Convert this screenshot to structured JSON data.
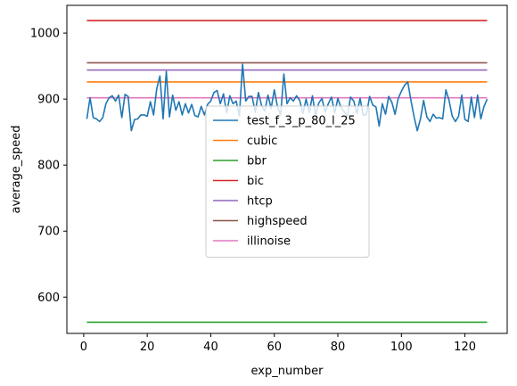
{
  "chart_data": {
    "type": "line",
    "xlabel": "exp_number",
    "ylabel": "average_speed",
    "xlim": [
      -5.3,
      133.3
    ],
    "ylim": [
      545,
      1042
    ],
    "xticks": [
      0,
      20,
      40,
      60,
      80,
      100,
      120
    ],
    "yticks": [
      600,
      700,
      800,
      900,
      1000
    ],
    "grid": false,
    "legend_position": "center",
    "series": [
      {
        "name": "test_f_3_p_80_l_25",
        "color": "#1f77b4",
        "x": [
          1,
          2,
          3,
          4,
          5,
          6,
          7,
          8,
          9,
          10,
          11,
          12,
          13,
          14,
          15,
          16,
          17,
          18,
          19,
          20,
          21,
          22,
          23,
          24,
          25,
          26,
          27,
          28,
          29,
          30,
          31,
          32,
          33,
          34,
          35,
          36,
          37,
          38,
          39,
          40,
          41,
          42,
          43,
          44,
          45,
          46,
          47,
          48,
          49,
          50,
          51,
          52,
          53,
          54,
          55,
          56,
          57,
          58,
          59,
          60,
          61,
          62,
          63,
          64,
          65,
          66,
          67,
          68,
          69,
          70,
          71,
          72,
          73,
          74,
          75,
          76,
          77,
          78,
          79,
          80,
          81,
          82,
          83,
          84,
          85,
          86,
          87,
          88,
          89,
          90,
          91,
          92,
          93,
          94,
          95,
          96,
          97,
          98,
          99,
          100,
          101,
          102,
          103,
          104,
          105,
          106,
          107,
          108,
          109,
          110,
          111,
          112,
          113,
          114,
          115,
          116,
          117,
          118,
          119,
          120,
          121,
          122,
          123,
          124,
          125,
          126,
          127
        ],
        "y": [
          870,
          902,
          872,
          870,
          866,
          872,
          893,
          902,
          905,
          897,
          906,
          872,
          907,
          904,
          852,
          869,
          870,
          876,
          876,
          874,
          896,
          876,
          916,
          935,
          870,
          942,
          873,
          906,
          883,
          896,
          876,
          893,
          879,
          892,
          875,
          873,
          889,
          876,
          892,
          897,
          910,
          913,
          893,
          908,
          879,
          905,
          893,
          897,
          874,
          953,
          897,
          904,
          904,
          880,
          910,
          890,
          882,
          906,
          886,
          914,
          888,
          876,
          938,
          893,
          902,
          897,
          905,
          898,
          878,
          900,
          880,
          905,
          875,
          894,
          901,
          880,
          893,
          903,
          879,
          901,
          887,
          881,
          874,
          903,
          897,
          878,
          901,
          875,
          877,
          904,
          891,
          888,
          859,
          893,
          877,
          904,
          895,
          877,
          901,
          912,
          921,
          926,
          898,
          873,
          852,
          870,
          898,
          873,
          866,
          877,
          871,
          872,
          870,
          914,
          898,
          874,
          866,
          874,
          906,
          869,
          866,
          903,
          872,
          906,
          870,
          889,
          900
        ]
      },
      {
        "name": "cubic",
        "color": "#ff7f0e",
        "x": [
          1,
          127
        ],
        "y": [
          926,
          926
        ]
      },
      {
        "name": "bbr",
        "color": "#2ca02c",
        "x": [
          1,
          127
        ],
        "y": [
          562,
          562
        ]
      },
      {
        "name": "bic",
        "color": "#d62728",
        "x": [
          1,
          127
        ],
        "y": [
          1019,
          1019
        ]
      },
      {
        "name": "htcp",
        "color": "#9467bd",
        "x": [
          1,
          127
        ],
        "y": [
          944,
          944
        ]
      },
      {
        "name": "highspeed",
        "color": "#8c564b",
        "x": [
          1,
          127
        ],
        "y": [
          955,
          955
        ]
      },
      {
        "name": "illinoise",
        "color": "#e377c2",
        "x": [
          1,
          127
        ],
        "y": [
          902,
          902
        ]
      }
    ]
  }
}
